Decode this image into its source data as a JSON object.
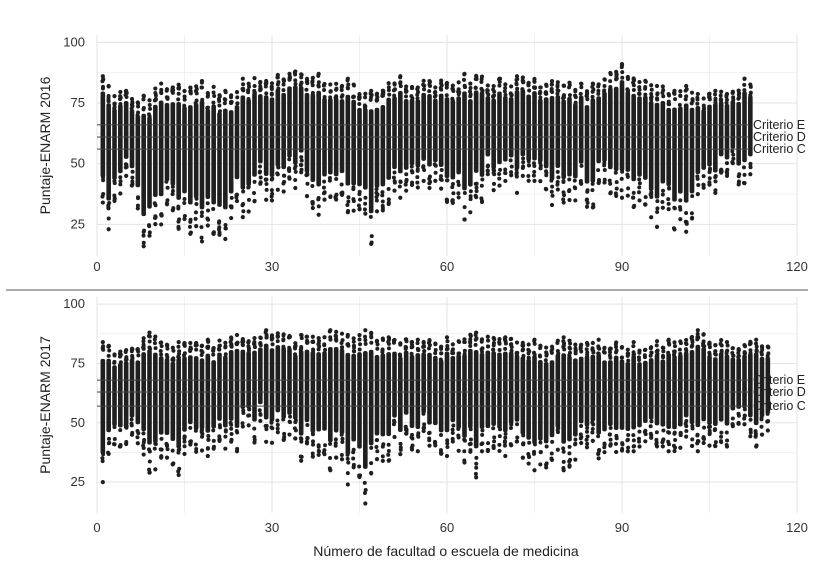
{
  "xlabel_shared": "Número de facultad o escuela de medicina",
  "chart_data": [
    {
      "type": "scatter",
      "ylabel": "Puntaje-ENARM 2016",
      "xlim": [
        0,
        120
      ],
      "ylim": [
        12,
        103
      ],
      "xticks": [
        0,
        30,
        60,
        90,
        120
      ],
      "yticks": [
        25,
        50,
        75,
        100
      ],
      "grid": true,
      "schools": 112,
      "columns": [
        {
          "x": 1,
          "min": 34,
          "max": 86
        },
        {
          "x": 2,
          "min": 23,
          "max": 82
        },
        {
          "x": 5,
          "min": 45,
          "max": 80
        },
        {
          "x": 8,
          "min": 16,
          "max": 78
        },
        {
          "x": 11,
          "min": 25,
          "max": 83
        },
        {
          "x": 18,
          "min": 18,
          "max": 84
        },
        {
          "x": 22,
          "min": 19,
          "max": 80
        },
        {
          "x": 25,
          "min": 28,
          "max": 85
        },
        {
          "x": 34,
          "min": 40,
          "max": 88
        },
        {
          "x": 38,
          "min": 29,
          "max": 87
        },
        {
          "x": 43,
          "min": 30,
          "max": 85
        },
        {
          "x": 47,
          "min": 17,
          "max": 80
        },
        {
          "x": 52,
          "min": 36,
          "max": 86
        },
        {
          "x": 57,
          "min": 40,
          "max": 84
        },
        {
          "x": 63,
          "min": 27,
          "max": 87
        },
        {
          "x": 69,
          "min": 41,
          "max": 85
        },
        {
          "x": 72,
          "min": 38,
          "max": 86
        },
        {
          "x": 78,
          "min": 33,
          "max": 84
        },
        {
          "x": 85,
          "min": 32,
          "max": 83
        },
        {
          "x": 90,
          "min": 36,
          "max": 91
        },
        {
          "x": 96,
          "min": 24,
          "max": 82
        },
        {
          "x": 101,
          "min": 22,
          "max": 82
        },
        {
          "x": 106,
          "min": 38,
          "max": 80
        },
        {
          "x": 111,
          "min": 42,
          "max": 85
        }
      ],
      "thresholds": [
        {
          "name": "Criterio E",
          "y": 66
        },
        {
          "name": "Criterio D",
          "y": 61
        },
        {
          "name": "Criterio C",
          "y": 56
        }
      ]
    },
    {
      "type": "scatter",
      "ylabel": "Puntaje-ENARM 2017",
      "xlim": [
        0,
        120
      ],
      "ylim": [
        12,
        103
      ],
      "xticks": [
        0,
        30,
        60,
        90,
        120
      ],
      "yticks": [
        25,
        50,
        75,
        100
      ],
      "grid": true,
      "schools": 115,
      "columns": [
        {
          "x": 1,
          "min": 25,
          "max": 84
        },
        {
          "x": 4,
          "min": 40,
          "max": 80
        },
        {
          "x": 9,
          "min": 29,
          "max": 88
        },
        {
          "x": 14,
          "min": 28,
          "max": 84
        },
        {
          "x": 19,
          "min": 36,
          "max": 85
        },
        {
          "x": 24,
          "min": 38,
          "max": 87
        },
        {
          "x": 29,
          "min": 42,
          "max": 89
        },
        {
          "x": 35,
          "min": 34,
          "max": 87
        },
        {
          "x": 40,
          "min": 30,
          "max": 89
        },
        {
          "x": 43,
          "min": 24,
          "max": 87
        },
        {
          "x": 46,
          "min": 16,
          "max": 89
        },
        {
          "x": 50,
          "min": 34,
          "max": 86
        },
        {
          "x": 55,
          "min": 38,
          "max": 85
        },
        {
          "x": 60,
          "min": 36,
          "max": 86
        },
        {
          "x": 65,
          "min": 27,
          "max": 88
        },
        {
          "x": 70,
          "min": 36,
          "max": 86
        },
        {
          "x": 75,
          "min": 30,
          "max": 85
        },
        {
          "x": 80,
          "min": 30,
          "max": 86
        },
        {
          "x": 86,
          "min": 35,
          "max": 85
        },
        {
          "x": 92,
          "min": 38,
          "max": 84
        },
        {
          "x": 98,
          "min": 38,
          "max": 85
        },
        {
          "x": 103,
          "min": 38,
          "max": 89
        },
        {
          "x": 108,
          "min": 40,
          "max": 84
        },
        {
          "x": 113,
          "min": 40,
          "max": 85
        }
      ],
      "thresholds": [
        {
          "name": "Criterio E",
          "y": 68
        },
        {
          "name": "Criterio D",
          "y": 63
        },
        {
          "name": "Criterio C",
          "y": 57
        }
      ]
    }
  ]
}
